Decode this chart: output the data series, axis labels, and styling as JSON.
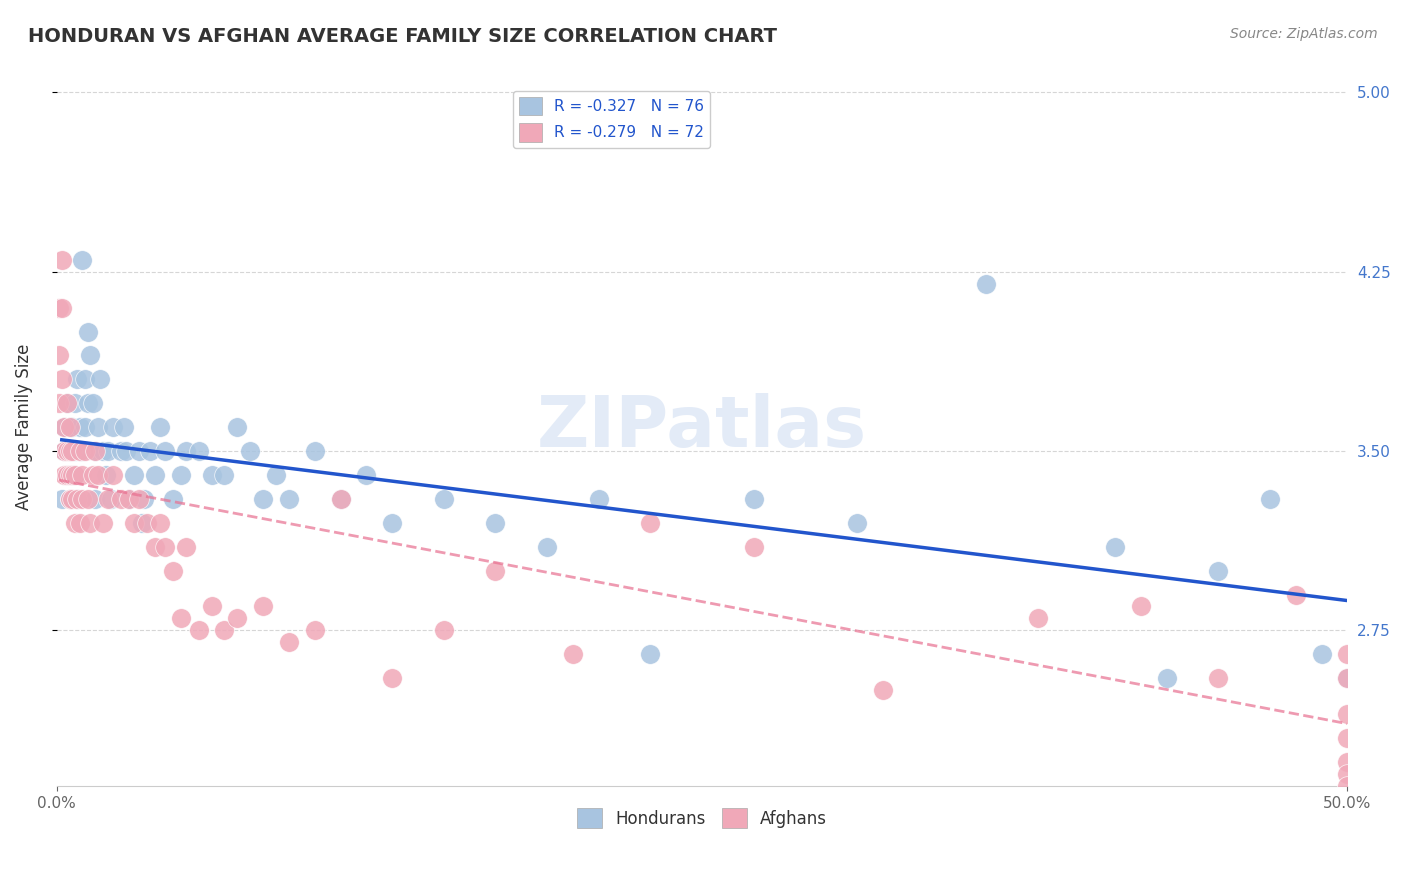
{
  "title": "HONDURAN VS AFGHAN AVERAGE FAMILY SIZE CORRELATION CHART",
  "source": "Source: ZipAtlas.com",
  "xlabel": "",
  "ylabel": "Average Family Size",
  "xlim": [
    0.0,
    0.5
  ],
  "ylim": [
    2.1,
    5.1
  ],
  "yticks": [
    2.75,
    3.5,
    4.25,
    5.0
  ],
  "xtick_labels": [
    "0.0%",
    "50.0%"
  ],
  "background_color": "#ffffff",
  "grid_color": "#cccccc",
  "honduran_color": "#a8c4e0",
  "afghan_color": "#f0a8b8",
  "honduran_line_color": "#2255cc",
  "afghan_line_color": "#e87090",
  "legend_R_honduran": "R = -0.327",
  "legend_N_honduran": "N = 76",
  "legend_R_afghan": "R = -0.279",
  "legend_N_afghan": "N = 72",
  "watermark": "ZIPatlas",
  "honduran_x": [
    0.002,
    0.003,
    0.003,
    0.004,
    0.004,
    0.005,
    0.005,
    0.005,
    0.006,
    0.006,
    0.006,
    0.007,
    0.007,
    0.007,
    0.008,
    0.008,
    0.009,
    0.009,
    0.01,
    0.01,
    0.011,
    0.011,
    0.012,
    0.012,
    0.013,
    0.014,
    0.015,
    0.015,
    0.016,
    0.017,
    0.018,
    0.019,
    0.02,
    0.021,
    0.022,
    0.025,
    0.026,
    0.027,
    0.028,
    0.03,
    0.032,
    0.033,
    0.034,
    0.036,
    0.038,
    0.04,
    0.042,
    0.045,
    0.048,
    0.05,
    0.055,
    0.06,
    0.065,
    0.07,
    0.075,
    0.08,
    0.085,
    0.09,
    0.1,
    0.11,
    0.12,
    0.13,
    0.15,
    0.17,
    0.19,
    0.21,
    0.23,
    0.27,
    0.31,
    0.36,
    0.41,
    0.43,
    0.45,
    0.47,
    0.49,
    0.5
  ],
  "honduran_y": [
    3.3,
    3.5,
    3.6,
    3.4,
    3.7,
    3.3,
    3.5,
    3.6,
    3.5,
    3.4,
    3.6,
    3.5,
    3.4,
    3.7,
    3.3,
    3.8,
    3.6,
    3.5,
    3.5,
    4.3,
    3.6,
    3.8,
    3.7,
    4.0,
    3.9,
    3.7,
    3.5,
    3.3,
    3.6,
    3.8,
    3.5,
    3.4,
    3.5,
    3.3,
    3.6,
    3.5,
    3.6,
    3.5,
    3.3,
    3.4,
    3.5,
    3.2,
    3.3,
    3.5,
    3.4,
    3.6,
    3.5,
    3.3,
    3.4,
    3.5,
    3.5,
    3.4,
    3.4,
    3.6,
    3.5,
    3.3,
    3.4,
    3.3,
    3.5,
    3.3,
    3.4,
    3.2,
    3.3,
    3.2,
    3.1,
    3.3,
    2.65,
    3.3,
    3.2,
    4.2,
    3.1,
    2.55,
    3.0,
    3.3,
    2.65,
    2.55
  ],
  "afghan_x": [
    0.001,
    0.001,
    0.001,
    0.002,
    0.002,
    0.002,
    0.003,
    0.003,
    0.003,
    0.004,
    0.004,
    0.004,
    0.005,
    0.005,
    0.005,
    0.005,
    0.006,
    0.006,
    0.006,
    0.007,
    0.007,
    0.008,
    0.009,
    0.009,
    0.01,
    0.01,
    0.011,
    0.012,
    0.013,
    0.014,
    0.015,
    0.016,
    0.018,
    0.02,
    0.022,
    0.025,
    0.028,
    0.03,
    0.032,
    0.035,
    0.038,
    0.04,
    0.042,
    0.045,
    0.048,
    0.05,
    0.055,
    0.06,
    0.065,
    0.07,
    0.08,
    0.09,
    0.1,
    0.11,
    0.13,
    0.15,
    0.17,
    0.2,
    0.23,
    0.27,
    0.32,
    0.38,
    0.42,
    0.45,
    0.48,
    0.5,
    0.5,
    0.5,
    0.5,
    0.5,
    0.5,
    0.5
  ],
  "afghan_y": [
    4.1,
    3.9,
    3.7,
    4.3,
    4.1,
    3.8,
    3.6,
    3.5,
    3.4,
    3.7,
    3.5,
    3.4,
    3.6,
    3.5,
    3.4,
    3.3,
    3.5,
    3.4,
    3.3,
    3.4,
    3.2,
    3.3,
    3.5,
    3.2,
    3.4,
    3.3,
    3.5,
    3.3,
    3.2,
    3.4,
    3.5,
    3.4,
    3.2,
    3.3,
    3.4,
    3.3,
    3.3,
    3.2,
    3.3,
    3.2,
    3.1,
    3.2,
    3.1,
    3.0,
    2.8,
    3.1,
    2.75,
    2.85,
    2.75,
    2.8,
    2.85,
    2.7,
    2.75,
    3.3,
    2.55,
    2.75,
    3.0,
    2.65,
    3.2,
    3.1,
    2.5,
    2.8,
    2.85,
    2.55,
    2.9,
    2.65,
    2.55,
    2.4,
    2.3,
    2.2,
    2.15,
    2.1
  ]
}
